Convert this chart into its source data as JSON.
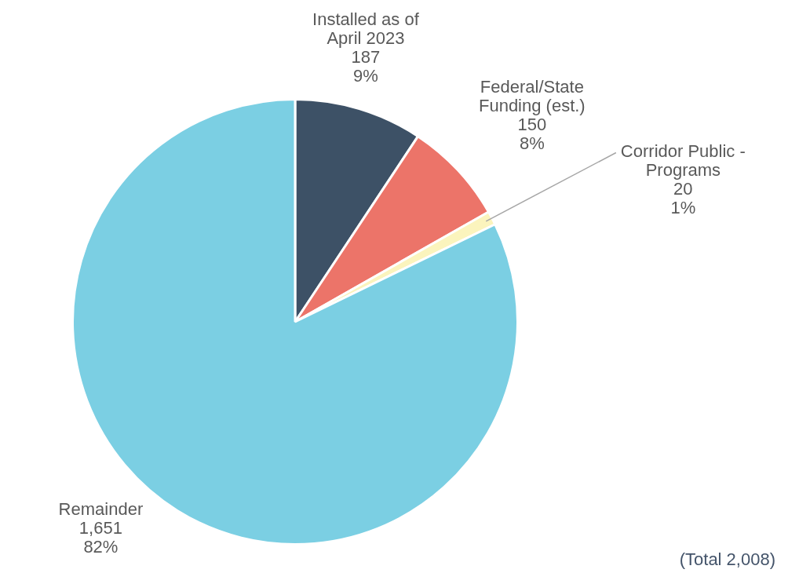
{
  "chart_data": {
    "type": "pie",
    "categories": [
      "Installed as of April 2023",
      "Federal/State Funding (est.)",
      "Corridor Public - Programs",
      "Remainder"
    ],
    "values": [
      187,
      150,
      20,
      1651
    ],
    "colors": [
      "#3d5166",
      "#ec7469",
      "#fbf4bd",
      "#7bcfe3"
    ],
    "value_labels": [
      "187\n9%",
      "150\n8%",
      "20\n1%",
      "1,651\n82%"
    ],
    "legend": false,
    "annotations": [
      "(Total 2,008)"
    ]
  }
}
